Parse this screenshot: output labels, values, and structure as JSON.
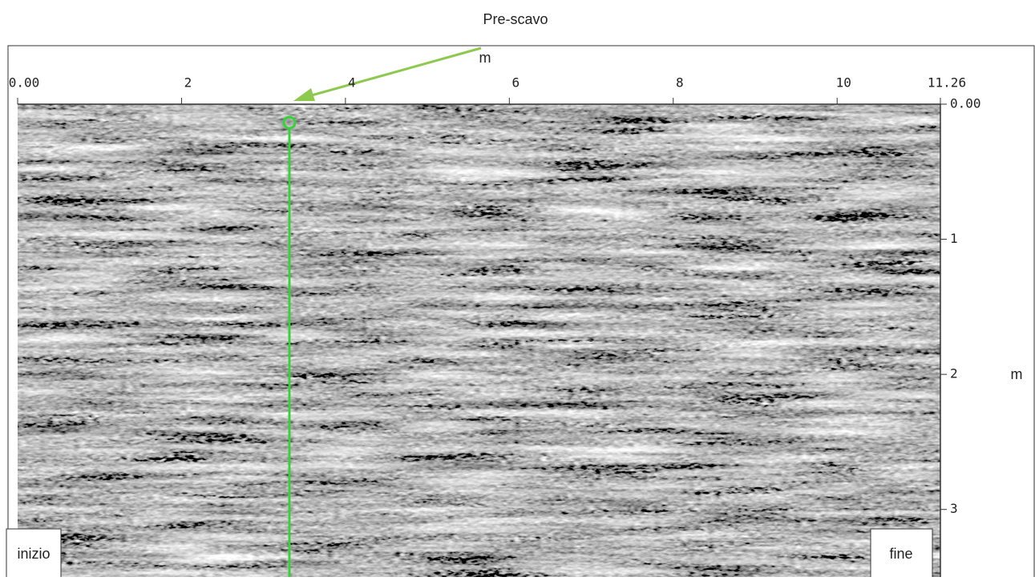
{
  "header": {
    "title": "Pre-scavo"
  },
  "x_axis": {
    "label": "m",
    "lim": [
      0,
      11.26
    ],
    "ticks": [
      {
        "value": 0,
        "label": "0.00"
      },
      {
        "value": 2,
        "label": "2"
      },
      {
        "value": 4,
        "label": "4"
      },
      {
        "value": 6,
        "label": "6"
      },
      {
        "value": 8,
        "label": "8"
      },
      {
        "value": 10,
        "label": "10"
      },
      {
        "value": 11.26,
        "label": "11.26"
      }
    ]
  },
  "y_axis": {
    "label": "m",
    "lim": [
      0,
      3.5
    ],
    "ticks": [
      {
        "value": 0,
        "label": "0.00"
      },
      {
        "value": 1,
        "label": "1"
      },
      {
        "value": 2,
        "label": "2"
      },
      {
        "value": 3,
        "label": "3"
      }
    ]
  },
  "corners": {
    "start": "inizio",
    "end": "fine"
  }
}
